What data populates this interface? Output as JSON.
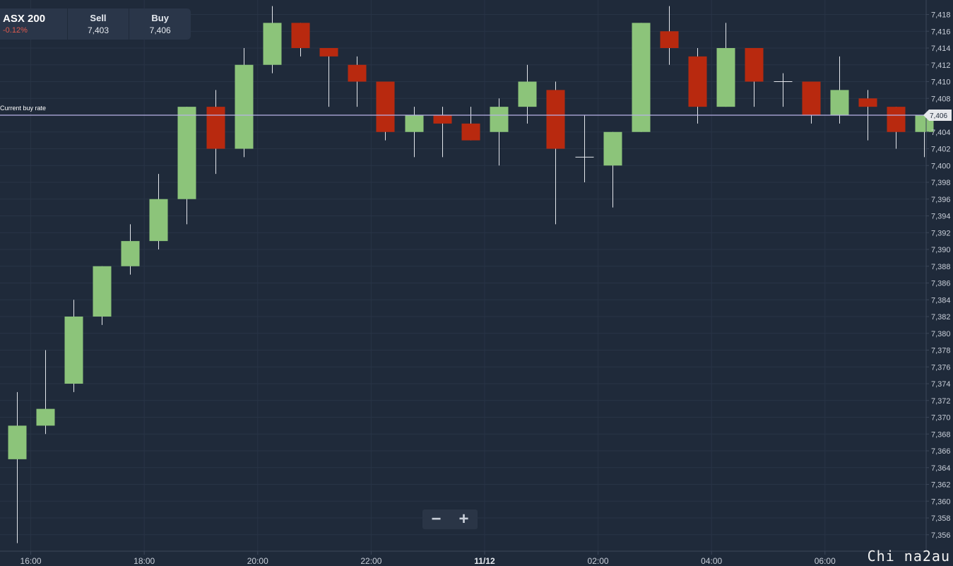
{
  "ticker": {
    "name": "ASX 200",
    "change": "-0.12%",
    "sell_label": "Sell",
    "sell_value": "7,403",
    "buy_label": "Buy",
    "buy_value": "7,406"
  },
  "zoom": {
    "minus": "−",
    "plus": "+"
  },
  "watermark": "Chi na2au",
  "colors": {
    "background": "#1f2a3a",
    "up": "#8cc47a",
    "down": "#b8290f",
    "reference": "#b9b2e8"
  },
  "chart_data": {
    "type": "candlestick",
    "ylim": [
      7354,
      7419
    ],
    "y_ticks": [
      7356,
      7358,
      7360,
      7362,
      7364,
      7366,
      7368,
      7370,
      7372,
      7374,
      7376,
      7378,
      7380,
      7382,
      7384,
      7386,
      7388,
      7390,
      7392,
      7394,
      7396,
      7398,
      7400,
      7402,
      7404,
      7406,
      7408,
      7410,
      7412,
      7414,
      7416,
      7418
    ],
    "y_tick_labels": [
      "7,356",
      "7,358",
      "7,360",
      "7,362",
      "7,364",
      "7,366",
      "7,368",
      "7,370",
      "7,372",
      "7,374",
      "7,376",
      "7,378",
      "7,380",
      "7,382",
      "7,384",
      "7,386",
      "7,388",
      "7,390",
      "7,392",
      "7,394",
      "7,396",
      "7,398",
      "7,400",
      "7,402",
      "7,404",
      "7,406",
      "7,408",
      "7,410",
      "7,412",
      "7,414",
      "7,416",
      "7,418"
    ],
    "x_labels": [
      {
        "label": "16:00",
        "index": 0.5
      },
      {
        "label": "18:00",
        "index": 4.5
      },
      {
        "label": "20:00",
        "index": 8.5
      },
      {
        "label": "22:00",
        "index": 12.5
      },
      {
        "label": "11/12",
        "index": 16.5,
        "bold": true
      },
      {
        "label": "02:00",
        "index": 20.5
      },
      {
        "label": "04:00",
        "index": 24.5
      },
      {
        "label": "06:00",
        "index": 28.5
      }
    ],
    "candles": [
      {
        "open": 7365,
        "high": 7373,
        "low": 7355,
        "close": 7369
      },
      {
        "open": 7369,
        "high": 7378,
        "low": 7368,
        "close": 7371
      },
      {
        "open": 7374,
        "high": 7384,
        "low": 7373,
        "close": 7382
      },
      {
        "open": 7382,
        "high": 7388,
        "low": 7381,
        "close": 7388
      },
      {
        "open": 7388,
        "high": 7393,
        "low": 7387,
        "close": 7391
      },
      {
        "open": 7391,
        "high": 7399,
        "low": 7390,
        "close": 7396
      },
      {
        "open": 7396,
        "high": 7407,
        "low": 7393,
        "close": 7407
      },
      {
        "open": 7407,
        "high": 7409,
        "low": 7399,
        "close": 7402
      },
      {
        "open": 7402,
        "high": 7414,
        "low": 7401,
        "close": 7412
      },
      {
        "open": 7412,
        "high": 7419,
        "low": 7411,
        "close": 7417
      },
      {
        "open": 7417,
        "high": 7417,
        "low": 7413,
        "close": 7414
      },
      {
        "open": 7414,
        "high": 7414,
        "low": 7407,
        "close": 7413
      },
      {
        "open": 7412,
        "high": 7413,
        "low": 7407,
        "close": 7410
      },
      {
        "open": 7410,
        "high": 7410,
        "low": 7403,
        "close": 7404
      },
      {
        "open": 7404,
        "high": 7407,
        "low": 7401,
        "close": 7406
      },
      {
        "open": 7406,
        "high": 7407,
        "low": 7401,
        "close": 7405
      },
      {
        "open": 7405,
        "high": 7407,
        "low": 7403,
        "close": 7403
      },
      {
        "open": 7404,
        "high": 7408,
        "low": 7400,
        "close": 7407
      },
      {
        "open": 7407,
        "high": 7412,
        "low": 7405,
        "close": 7410
      },
      {
        "open": 7409,
        "high": 7410,
        "low": 7393,
        "close": 7402
      },
      {
        "open": 7401,
        "high": 7406,
        "low": 7398,
        "close": 7401
      },
      {
        "open": 7400,
        "high": 7404,
        "low": 7395,
        "close": 7404
      },
      {
        "open": 7404,
        "high": 7417,
        "low": 7404,
        "close": 7417
      },
      {
        "open": 7416,
        "high": 7419,
        "low": 7412,
        "close": 7414
      },
      {
        "open": 7413,
        "high": 7414,
        "low": 7405,
        "close": 7407
      },
      {
        "open": 7407,
        "high": 7417,
        "low": 7407,
        "close": 7414
      },
      {
        "open": 7414,
        "high": 7414,
        "low": 7407,
        "close": 7410
      },
      {
        "open": 7410,
        "high": 7411,
        "low": 7407,
        "close": 7410
      },
      {
        "open": 7410,
        "high": 7410,
        "low": 7405,
        "close": 7406
      },
      {
        "open": 7406,
        "high": 7413,
        "low": 7405,
        "close": 7409
      },
      {
        "open": 7408,
        "high": 7409,
        "low": 7403,
        "close": 7407
      },
      {
        "open": 7407,
        "high": 7407,
        "low": 7402,
        "close": 7404
      },
      {
        "open": 7404,
        "high": 7406,
        "low": 7401,
        "close": 7406
      }
    ],
    "reference_line": {
      "label": "Current buy rate",
      "value": 7406,
      "value_label": "7,406"
    },
    "grid": true
  }
}
